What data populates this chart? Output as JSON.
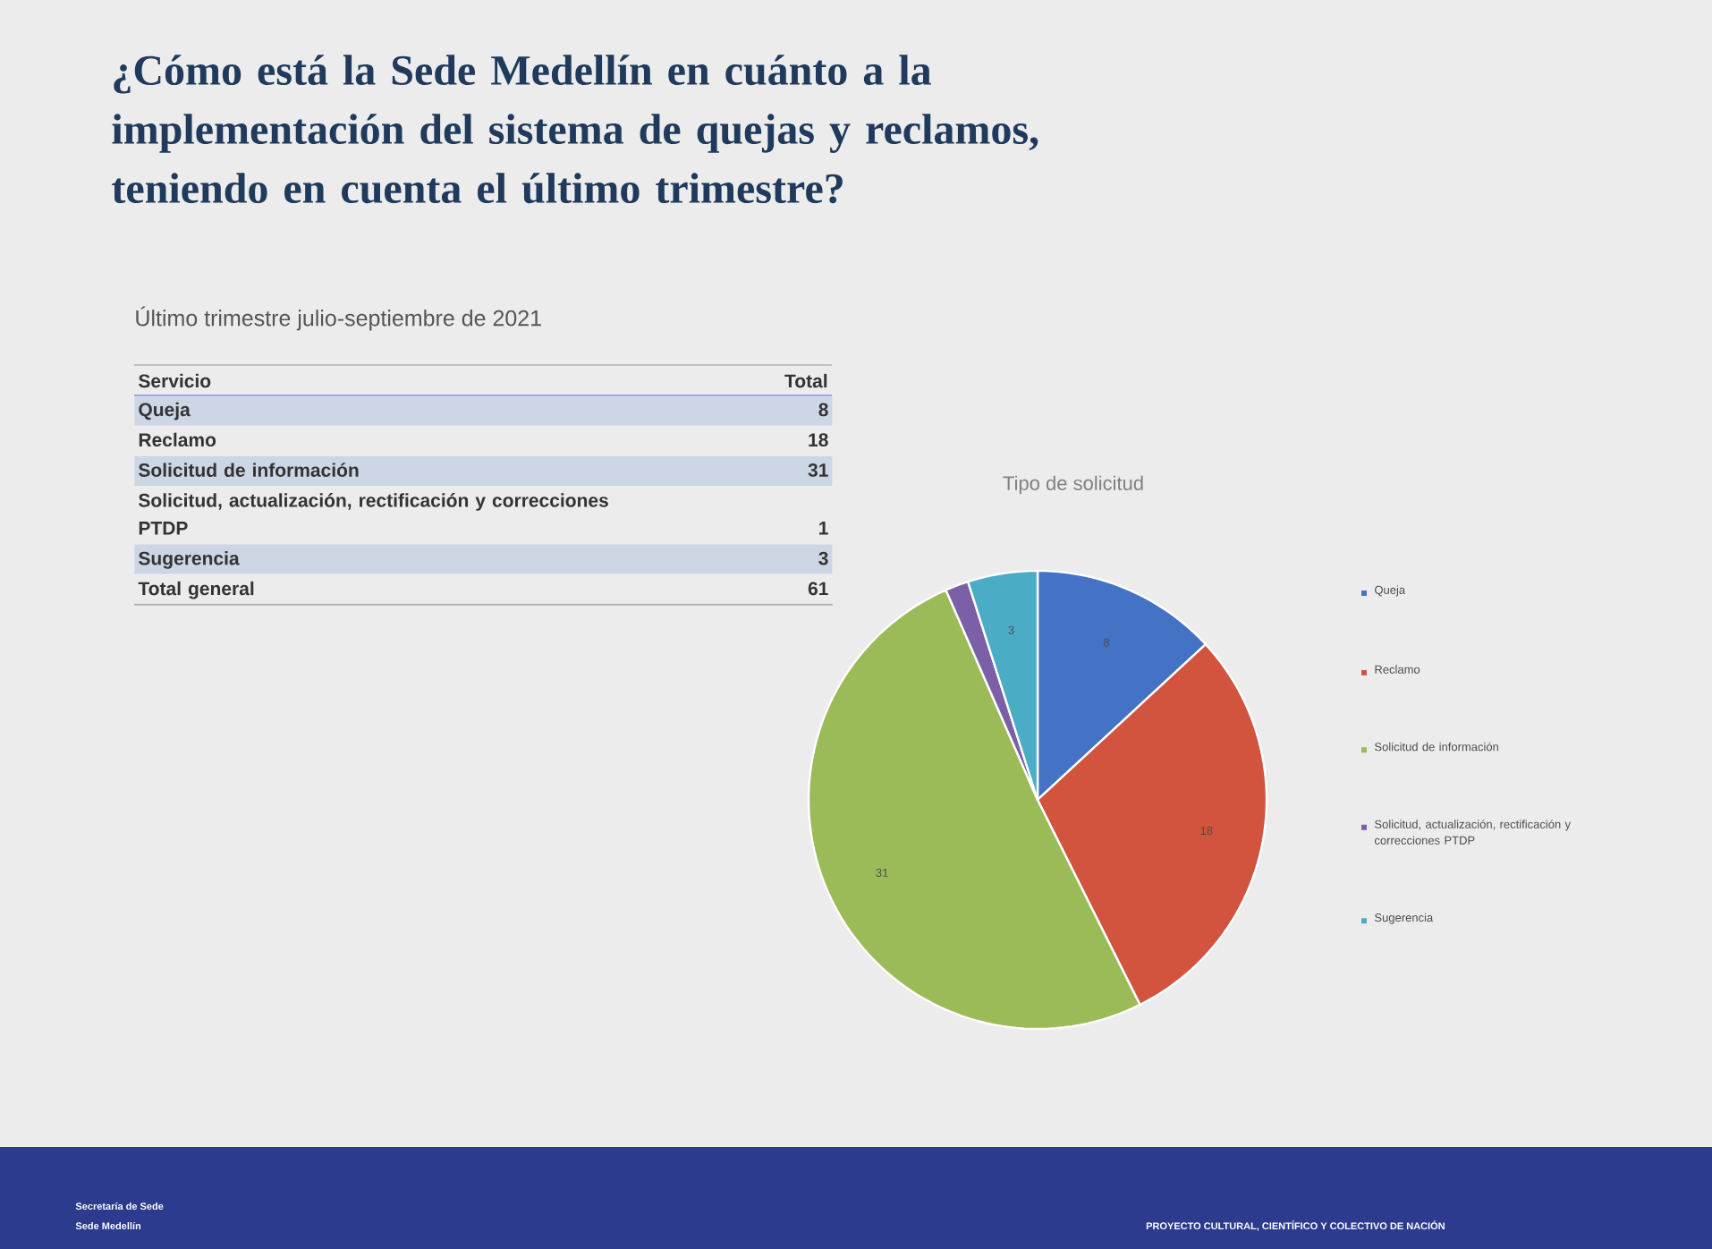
{
  "chart_data": {
    "type": "pie",
    "title": "¿Cómo está la Sede Medellín en cuánto a la implementación del sistema de quejas y reclamos, teniendo en cuenta el último trimestre?",
    "subtitle": "Último trimestre julio-septiembre de 2021",
    "categories": [
      "Queja",
      "Reclamo",
      "Solicitud de información",
      "Solicitud, actualización, rectificación y correcciones PTDP",
      "Sugerencia"
    ],
    "values": [
      8,
      18,
      31,
      1,
      3
    ],
    "colors": [
      "#4472c4",
      "#d2533e",
      "#9bbb59",
      "#7b60a8",
      "#4bacc6"
    ],
    "value_labels": [
      "8",
      "18",
      "31",
      null,
      "3"
    ],
    "legend": "right",
    "annotations": [
      "Tipo de solicitud",
      "Servicio",
      "Total",
      "Total general",
      "61",
      "Secretaría de Sede",
      "Sede Medellín",
      "PROYECTO CULTURAL, CIENTÍFICO Y COLECTIVO DE NACIÓN",
      "8",
      "18",
      "31",
      "1",
      "3"
    ]
  }
}
